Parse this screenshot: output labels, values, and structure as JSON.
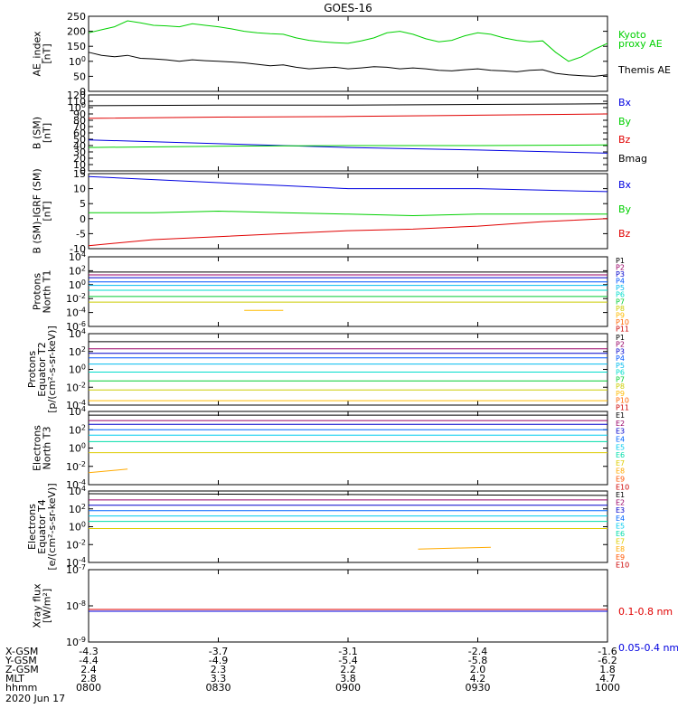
{
  "title": "GOES-16",
  "date_label": "2020 Jun 17",
  "time_axis": {
    "rows": [
      {
        "label": "X-GSM",
        "values": [
          "-4.3",
          "-3.7",
          "-3.1",
          "-2.4",
          "-1.6"
        ]
      },
      {
        "label": "Y-GSM",
        "values": [
          "-4.4",
          "-4.9",
          "-5.4",
          "-5.8",
          "-6.2"
        ]
      },
      {
        "label": "Z-GSM",
        "values": [
          "2.4",
          "2.3",
          "2.2",
          "2.0",
          "1.8"
        ]
      },
      {
        "label": "MLT",
        "values": [
          "2.8",
          "3.3",
          "3.8",
          "4.2",
          "4.7"
        ]
      },
      {
        "label": "hhmm",
        "values": [
          "0800",
          "0830",
          "0900",
          "0930",
          "1000"
        ]
      }
    ]
  },
  "colors": {
    "black": "#000000",
    "red": "#e00000",
    "green": "#00d000",
    "blue": "#0000e0",
    "P": [
      "#000000",
      "#990066",
      "#0000cc",
      "#0055ff",
      "#00bbee",
      "#00ddcc",
      "#00cc33",
      "#cccc00",
      "#ffbb00",
      "#ff6600",
      "#cc0000",
      "#990000"
    ],
    "E": [
      "#000000",
      "#990066",
      "#0000cc",
      "#0066ff",
      "#00ccee",
      "#00ddaa",
      "#ddcc00",
      "#ffaa00",
      "#ff5500",
      "#cc0000",
      "#990000"
    ]
  },
  "chart_data": [
    {
      "type": "line",
      "name": "ae",
      "ylabel": [
        "AE_index",
        "[nT]"
      ],
      "ylim": [
        0,
        250
      ],
      "yticks": [
        "0",
        "50",
        "100",
        "150",
        "200",
        "250"
      ],
      "log": false,
      "x_hours": [
        8.0,
        8.05,
        8.1,
        8.15,
        8.2,
        8.25,
        8.3,
        8.35,
        8.4,
        8.45,
        8.5,
        8.55,
        8.6,
        8.65,
        8.7,
        8.75,
        8.8,
        8.85,
        8.9,
        8.95,
        9.0,
        9.05,
        9.1,
        9.15,
        9.2,
        9.25,
        9.3,
        9.35,
        9.4,
        9.45,
        9.5,
        9.55,
        9.6,
        9.65,
        9.7,
        9.75,
        9.8,
        9.85,
        9.9,
        9.95,
        10.0
      ],
      "series": [
        {
          "name": "Kyoto proxy AE",
          "color": "#00d000",
          "values": [
            195,
            205,
            215,
            235,
            228,
            220,
            218,
            215,
            225,
            220,
            215,
            208,
            200,
            195,
            192,
            190,
            178,
            170,
            165,
            162,
            160,
            168,
            178,
            195,
            200,
            190,
            175,
            165,
            170,
            185,
            195,
            190,
            178,
            170,
            165,
            168,
            130,
            100,
            115,
            140,
            160
          ]
        },
        {
          "name": "Themis AE",
          "color": "#000000",
          "values": [
            130,
            120,
            115,
            120,
            110,
            108,
            105,
            100,
            105,
            102,
            100,
            98,
            95,
            90,
            85,
            88,
            80,
            75,
            78,
            80,
            75,
            78,
            82,
            80,
            75,
            78,
            75,
            70,
            68,
            72,
            75,
            70,
            68,
            65,
            70,
            72,
            60,
            55,
            52,
            50,
            55
          ]
        }
      ]
    },
    {
      "type": "line",
      "name": "bsm",
      "ylabel": [
        "B (SM)",
        "[nT]"
      ],
      "ylim": [
        0,
        120
      ],
      "yticks": [
        "0",
        "10",
        "20",
        "30",
        "40",
        "50",
        "60",
        "70",
        "80",
        "90",
        "100",
        "110",
        "120"
      ],
      "log": false,
      "x_hours": [
        8.0,
        8.5,
        9.0,
        9.5,
        10.0
      ],
      "series": [
        {
          "name": "Bx",
          "color": "#0000e0",
          "values": [
            49,
            43,
            37,
            33,
            28
          ]
        },
        {
          "name": "By",
          "color": "#00d000",
          "values": [
            37,
            39,
            40,
            40,
            41
          ]
        },
        {
          "name": "Bz",
          "color": "#e00000",
          "values": [
            83,
            85,
            86,
            88,
            90
          ]
        },
        {
          "name": "Bmag",
          "color": "#000000",
          "values": [
            103,
            104,
            104,
            105,
            106
          ]
        }
      ]
    },
    {
      "type": "line",
      "name": "bigrf",
      "ylabel": [
        "B (SM)-IGRF (SM)",
        "[nT]"
      ],
      "ylim": [
        -10,
        15
      ],
      "yticks": [
        "-10",
        "-5",
        "0",
        "5",
        "10",
        "15"
      ],
      "log": false,
      "x_hours": [
        8.0,
        8.25,
        8.5,
        8.75,
        9.0,
        9.25,
        9.5,
        9.75,
        10.0
      ],
      "series": [
        {
          "name": "Bx",
          "color": "#0000e0",
          "values": [
            14,
            13,
            12,
            11,
            10,
            10,
            10,
            9.5,
            9
          ]
        },
        {
          "name": "By",
          "color": "#00d000",
          "values": [
            2,
            2,
            2.5,
            2,
            1.5,
            1,
            1.5,
            1.5,
            1.5
          ]
        },
        {
          "name": "Bz",
          "color": "#e00000",
          "values": [
            -9,
            -7,
            -6,
            -5,
            -4,
            -3.5,
            -2.5,
            -1,
            0
          ]
        }
      ]
    },
    {
      "type": "line",
      "name": "pn",
      "ylabel": [
        "Protons",
        "North T1"
      ],
      "ylim": [
        -6,
        4
      ],
      "yticks": [
        "10-6",
        "10-4",
        "10-2",
        "100",
        "102",
        "104"
      ],
      "log": true,
      "x_hours": [
        8.0,
        10.0
      ],
      "series": [
        {
          "name": "P1",
          "values": [
            1.8,
            1.8
          ]
        },
        {
          "name": "P2",
          "values": [
            1.4,
            1.4
          ]
        },
        {
          "name": "P3",
          "values": [
            1.0,
            1.0
          ]
        },
        {
          "name": "P4",
          "values": [
            0.4,
            0.4
          ]
        },
        {
          "name": "P5",
          "values": [
            -0.1,
            -0.1
          ]
        },
        {
          "name": "P6",
          "values": [
            -0.8,
            -0.8
          ]
        },
        {
          "name": "P7",
          "values": [
            -1.7,
            -1.7
          ]
        },
        {
          "name": "P8",
          "values": [
            -2.5,
            -2.5
          ]
        },
        {
          "name": "P9",
          "values": [
            -3.7,
            -3.7
          ],
          "segment": [
            8.6,
            8.75
          ]
        }
      ],
      "legend": [
        "P1",
        "P2",
        "P3",
        "P4",
        "P5",
        "P6",
        "P7",
        "P8",
        "P9",
        "P10",
        "P11"
      ]
    },
    {
      "type": "line",
      "name": "pe",
      "ylabel": [
        "Protons",
        "Equator T2",
        "[p/(cm²-s-sr-keV)]"
      ],
      "ylim": [
        -4,
        4
      ],
      "yticks": [
        "10-4",
        "10-2",
        "100",
        "102",
        "104"
      ],
      "log": true,
      "x_hours": [
        8.0,
        10.0
      ],
      "series": [
        {
          "name": "P1",
          "values": [
            3.1,
            3.1
          ]
        },
        {
          "name": "P2",
          "values": [
            2.3,
            2.3
          ]
        },
        {
          "name": "P3",
          "values": [
            1.8,
            1.8
          ]
        },
        {
          "name": "P4",
          "values": [
            1.3,
            1.3
          ]
        },
        {
          "name": "P5",
          "values": [
            0.6,
            0.6
          ]
        },
        {
          "name": "P6",
          "values": [
            -0.3,
            -0.3
          ]
        },
        {
          "name": "P7",
          "values": [
            -1.3,
            -1.3
          ]
        },
        {
          "name": "P8",
          "values": [
            -2.3,
            -2.3
          ]
        },
        {
          "name": "P9",
          "values": [
            -3.5,
            -3.5
          ]
        }
      ],
      "legend": [
        "P1",
        "P2",
        "P3",
        "P4",
        "P5",
        "P6",
        "P7",
        "P8",
        "P9",
        "P10",
        "P11"
      ]
    },
    {
      "type": "line",
      "name": "en",
      "ylabel": [
        "Electrons",
        "North T3"
      ],
      "ylim": [
        -4,
        4
      ],
      "yticks": [
        "10-4",
        "10-2",
        "100",
        "102",
        "104"
      ],
      "log": true,
      "x_hours": [
        8.0,
        10.0
      ],
      "series": [
        {
          "name": "E1",
          "values": [
            3.6,
            3.6
          ]
        },
        {
          "name": "E2",
          "values": [
            3.0,
            3.0
          ]
        },
        {
          "name": "E3",
          "values": [
            2.6,
            2.6
          ]
        },
        {
          "name": "E4",
          "values": [
            2.0,
            2.0
          ]
        },
        {
          "name": "E5",
          "values": [
            1.4,
            1.4
          ]
        },
        {
          "name": "E6",
          "values": [
            0.7,
            0.7
          ]
        },
        {
          "name": "E7",
          "values": [
            -0.5,
            -0.5
          ]
        },
        {
          "name": "E8",
          "values": [
            -2.7,
            -2.3
          ],
          "segment": [
            8.0,
            8.15
          ]
        }
      ],
      "legend": [
        "E1",
        "E2",
        "E3",
        "E4",
        "E5",
        "E6",
        "E7",
        "E8",
        "E9",
        "E10"
      ]
    },
    {
      "type": "line",
      "name": "ee",
      "ylabel": [
        "Electrons",
        "Equator T4",
        "[e/(cm²-s-sr-keV)]"
      ],
      "ylim": [
        -4,
        4
      ],
      "yticks": [
        "10-4",
        "10-2",
        "100",
        "102",
        "104"
      ],
      "log": true,
      "x_hours": [
        8.0,
        10.0
      ],
      "series": [
        {
          "name": "E1",
          "values": [
            3.7,
            3.5
          ]
        },
        {
          "name": "E2",
          "values": [
            3.0,
            3.0
          ]
        },
        {
          "name": "E3",
          "values": [
            2.4,
            2.4
          ]
        },
        {
          "name": "E4",
          "values": [
            1.8,
            1.8
          ]
        },
        {
          "name": "E5",
          "values": [
            1.2,
            1.2
          ]
        },
        {
          "name": "E6",
          "values": [
            0.6,
            0.6
          ]
        },
        {
          "name": "E7",
          "values": [
            -0.2,
            -0.2
          ]
        },
        {
          "name": "E8",
          "values": [
            -2.5,
            -2.3
          ],
          "segment": [
            9.27,
            9.55
          ]
        }
      ],
      "legend": [
        "E1",
        "E2",
        "E3",
        "E4",
        "E5",
        "E6",
        "E7",
        "E8",
        "E9",
        "E10"
      ]
    },
    {
      "type": "line",
      "name": "xray",
      "ylabel": [
        "Xray flux",
        "[W/m²]"
      ],
      "ylim": [
        -9,
        -7
      ],
      "yticks": [
        "10-9",
        "10-8",
        "10-7"
      ],
      "log": true,
      "x_hours": [
        8.0,
        10.0
      ],
      "series": [
        {
          "name": "0.1-0.8 nm",
          "color": "#e00000",
          "values": [
            -8.1,
            -8.1
          ]
        },
        {
          "name": "0.05-0.4 nm",
          "color": "#0000e0",
          "values": [
            -8.15,
            -8.15
          ]
        }
      ]
    }
  ],
  "legend_labels": {
    "ae": [
      "Kyoto",
      "proxy AE",
      "Themis AE"
    ],
    "bsm": [
      "Bx",
      "By",
      "Bz",
      "Bmag"
    ],
    "bigrf": [
      "Bx",
      "By",
      "Bz"
    ],
    "xray": [
      "0.1-0.8 nm",
      "0.05-0.4 nm"
    ]
  }
}
